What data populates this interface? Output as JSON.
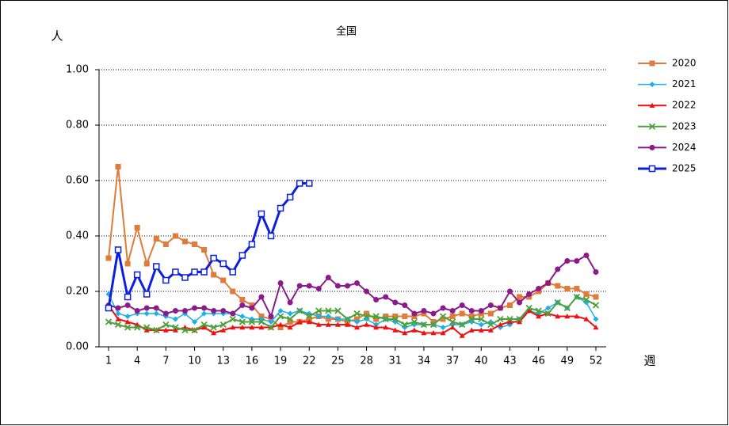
{
  "chart_data": {
    "type": "line",
    "title": "全国",
    "y_label": "人",
    "x_label": "週",
    "x": [
      1,
      2,
      3,
      4,
      5,
      6,
      7,
      8,
      9,
      10,
      11,
      12,
      13,
      14,
      15,
      16,
      17,
      18,
      19,
      20,
      21,
      22,
      23,
      24,
      25,
      26,
      27,
      28,
      29,
      30,
      31,
      32,
      33,
      34,
      35,
      36,
      37,
      38,
      39,
      40,
      41,
      42,
      43,
      44,
      45,
      46,
      47,
      48,
      49,
      50,
      51,
      52
    ],
    "xlim": [
      1,
      52
    ],
    "xticks": [
      1,
      4,
      7,
      10,
      13,
      16,
      19,
      22,
      25,
      28,
      31,
      34,
      37,
      40,
      43,
      46,
      49,
      52
    ],
    "ylim": [
      0,
      1
    ],
    "yticks": [
      {
        "value": 0,
        "label": "0.00"
      },
      {
        "value": 0.2,
        "label": "0.20"
      },
      {
        "value": 0.4,
        "label": "0.40"
      },
      {
        "value": 0.6,
        "label": "0.60"
      },
      {
        "value": 0.8,
        "label": "0.80"
      },
      {
        "value": 1,
        "label": "1.00"
      }
    ],
    "grid": true,
    "legend": "right",
    "series": [
      {
        "name": "2020",
        "color": "#e07b39",
        "marker": "square",
        "width": 2,
        "values": [
          0.32,
          0.65,
          0.3,
          0.43,
          0.3,
          0.39,
          0.37,
          0.4,
          0.38,
          0.37,
          0.35,
          0.26,
          0.24,
          0.2,
          0.17,
          0.15,
          0.11,
          0.1,
          0.07,
          0.09,
          0.09,
          0.1,
          0.11,
          0.1,
          0.1,
          0.09,
          0.1,
          0.12,
          0.1,
          0.11,
          0.11,
          0.11,
          0.11,
          0.12,
          0.09,
          0.1,
          0.11,
          0.12,
          0.11,
          0.12,
          0.12,
          0.14,
          0.15,
          0.18,
          0.18,
          0.2,
          0.23,
          0.22,
          0.21,
          0.21,
          0.19,
          0.18
        ]
      },
      {
        "name": "2021",
        "color": "#1ab0e8",
        "marker": "diamond",
        "width": 1.5,
        "values": [
          0.19,
          0.12,
          0.11,
          0.12,
          0.12,
          0.12,
          0.11,
          0.1,
          0.12,
          0.09,
          0.12,
          0.12,
          0.12,
          0.12,
          0.11,
          0.1,
          0.1,
          0.09,
          0.13,
          0.12,
          0.13,
          0.12,
          0.11,
          0.11,
          0.1,
          0.1,
          0.09,
          0.1,
          0.08,
          0.1,
          0.09,
          0.07,
          0.08,
          0.08,
          0.08,
          0.07,
          0.08,
          0.08,
          0.09,
          0.08,
          0.09,
          0.07,
          0.08,
          0.1,
          0.13,
          0.12,
          0.14,
          0.16,
          0.14,
          0.18,
          0.16,
          0.1
        ]
      },
      {
        "name": "2022",
        "color": "#ee1111",
        "marker": "triangle",
        "width": 2,
        "values": [
          0.15,
          0.1,
          0.09,
          0.08,
          0.06,
          0.06,
          0.06,
          0.06,
          0.07,
          0.06,
          0.07,
          0.05,
          0.06,
          0.07,
          0.07,
          0.07,
          0.07,
          0.07,
          0.08,
          0.07,
          0.09,
          0.09,
          0.08,
          0.08,
          0.08,
          0.08,
          0.07,
          0.08,
          0.07,
          0.07,
          0.06,
          0.05,
          0.06,
          0.05,
          0.05,
          0.05,
          0.07,
          0.04,
          0.06,
          0.06,
          0.06,
          0.08,
          0.09,
          0.09,
          0.13,
          0.11,
          0.12,
          0.11,
          0.11,
          0.11,
          0.1,
          0.07
        ]
      },
      {
        "name": "2023",
        "color": "#4ea03a",
        "marker": "cross",
        "width": 2,
        "values": [
          0.09,
          0.08,
          0.07,
          0.07,
          0.07,
          0.06,
          0.08,
          0.07,
          0.06,
          0.06,
          0.08,
          0.07,
          0.08,
          0.1,
          0.09,
          0.09,
          0.09,
          0.07,
          0.11,
          0.1,
          0.13,
          0.11,
          0.13,
          0.13,
          0.13,
          0.1,
          0.12,
          0.11,
          0.11,
          0.1,
          0.1,
          0.08,
          0.09,
          0.08,
          0.08,
          0.11,
          0.09,
          0.08,
          0.1,
          0.1,
          0.08,
          0.1,
          0.1,
          0.1,
          0.14,
          0.13,
          0.12,
          0.16,
          0.14,
          0.18,
          0.17,
          0.15
        ]
      },
      {
        "name": "2024",
        "color": "#8b1a8b",
        "marker": "circle",
        "width": 2,
        "values": [
          0.15,
          0.14,
          0.15,
          0.13,
          0.14,
          0.14,
          0.12,
          0.13,
          0.13,
          0.14,
          0.14,
          0.13,
          0.13,
          0.12,
          0.15,
          0.14,
          0.18,
          0.11,
          0.23,
          0.16,
          0.22,
          0.22,
          0.21,
          0.25,
          0.22,
          0.22,
          0.23,
          0.2,
          0.17,
          0.18,
          0.16,
          0.15,
          0.12,
          0.13,
          0.12,
          0.14,
          0.13,
          0.15,
          0.13,
          0.13,
          0.15,
          0.14,
          0.2,
          0.16,
          0.19,
          0.21,
          0.23,
          0.28,
          0.31,
          0.31,
          0.33,
          0.27
        ]
      },
      {
        "name": "2025",
        "color": "#0a1fe0",
        "marker": "open-square",
        "width": 3,
        "values": [
          0.14,
          0.35,
          0.18,
          0.26,
          0.19,
          0.29,
          0.24,
          0.27,
          0.25,
          0.27,
          0.27,
          0.32,
          0.3,
          0.27,
          0.33,
          0.37,
          0.48,
          0.4,
          0.5,
          0.54,
          0.59,
          0.59,
          null,
          null,
          null,
          null,
          null,
          null,
          null,
          null,
          null,
          null,
          null,
          null,
          null,
          null,
          null,
          null,
          null,
          null,
          null,
          null,
          null,
          null,
          null,
          null,
          null,
          null,
          null,
          null,
          null,
          null
        ]
      }
    ]
  }
}
